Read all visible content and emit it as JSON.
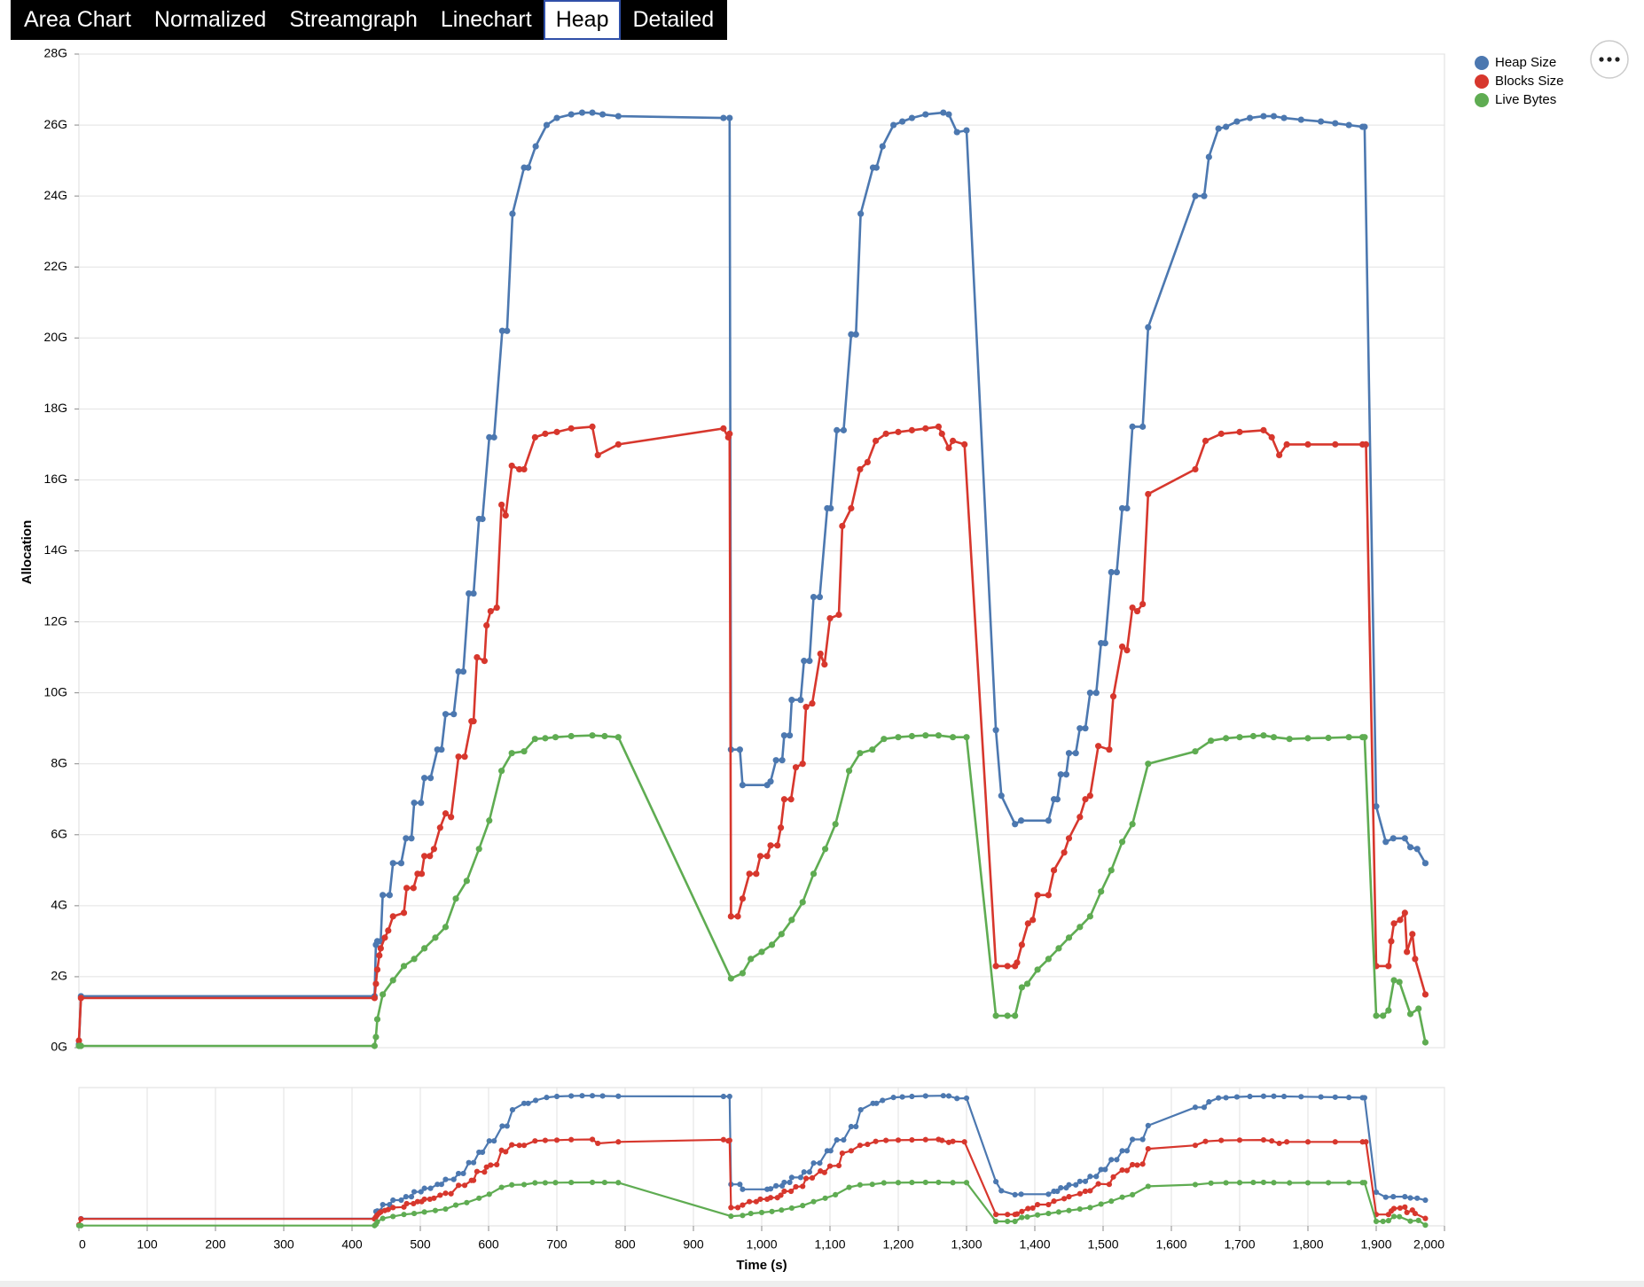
{
  "tabs": [
    "Area Chart",
    "Normalized",
    "Streamgraph",
    "Linechart",
    "Heap",
    "Detailed"
  ],
  "selected_tab": 4,
  "chart_data": {
    "type": "line",
    "x_label": "Time (s)",
    "y_label": "Allocation",
    "xlim": [
      0,
      2000
    ],
    "ylim": [
      0,
      28
    ],
    "yticks": [
      {
        "value": 0,
        "label": "0G"
      },
      {
        "value": 2,
        "label": "2G"
      },
      {
        "value": 4,
        "label": "4G"
      },
      {
        "value": 6,
        "label": "6G"
      },
      {
        "value": 8,
        "label": "8G"
      },
      {
        "value": 10,
        "label": "10G"
      },
      {
        "value": 12,
        "label": "12G"
      },
      {
        "value": 14,
        "label": "14G"
      },
      {
        "value": 16,
        "label": "16G"
      },
      {
        "value": 18,
        "label": "18G"
      },
      {
        "value": 20,
        "label": "20G"
      },
      {
        "value": 22,
        "label": "22G"
      },
      {
        "value": 24,
        "label": "24G"
      },
      {
        "value": 26,
        "label": "26G"
      },
      {
        "value": 28,
        "label": "28G"
      }
    ],
    "xticks": [
      0,
      100,
      200,
      300,
      400,
      500,
      600,
      700,
      800,
      900,
      {
        "value": 1000,
        "label": "1,000"
      },
      {
        "value": 1100,
        "label": "1,100"
      },
      {
        "value": 1200,
        "label": "1,200"
      },
      {
        "value": 1300,
        "label": "1,300"
      },
      {
        "value": 1400,
        "label": "1,400"
      },
      {
        "value": 1500,
        "label": "1,500"
      },
      {
        "value": 1600,
        "label": "1,600"
      },
      {
        "value": 1700,
        "label": "1,700"
      },
      {
        "value": 1800,
        "label": "1,800"
      },
      {
        "value": 1900,
        "label": "1,900"
      },
      {
        "value": 2000,
        "label": "2,000"
      }
    ],
    "grid": "y",
    "overview": true,
    "legend": "top-right",
    "series": [
      {
        "name": "Heap Size",
        "color": "#4c78b0",
        "x": [
          0,
          3,
          433,
          435,
          437,
          442,
          445,
          455,
          460,
          472,
          479,
          487,
          491,
          501,
          506,
          515,
          525,
          531,
          537,
          549,
          556,
          563,
          571,
          578,
          586,
          591,
          601,
          608,
          620,
          627,
          635,
          652,
          658,
          669,
          685,
          700,
          721,
          737,
          752,
          767,
          790,
          944,
          953,
          955,
          968,
          972,
          1008,
          1013,
          1021,
          1030,
          1033,
          1041,
          1044,
          1057,
          1062,
          1070,
          1076,
          1085,
          1096,
          1101,
          1110,
          1120,
          1131,
          1138,
          1145,
          1163,
          1168,
          1177,
          1193,
          1206,
          1220,
          1240,
          1266,
          1274,
          1286,
          1300,
          1343,
          1351,
          1371,
          1380,
          1420,
          1428,
          1433,
          1438,
          1446,
          1450,
          1460,
          1466,
          1474,
          1481,
          1490,
          1497,
          1503,
          1512,
          1520,
          1528,
          1535,
          1543,
          1558,
          1566,
          1635,
          1648,
          1655,
          1669,
          1680,
          1696,
          1715,
          1735,
          1750,
          1765,
          1790,
          1819,
          1840,
          1860,
          1880,
          1883,
          1900,
          1914,
          1925,
          1942,
          1950,
          1960,
          1972
        ],
        "values": [
          0.1,
          1.45,
          1.45,
          2.9,
          3.0,
          3.0,
          4.3,
          4.3,
          5.2,
          5.2,
          5.9,
          5.9,
          6.9,
          6.9,
          7.6,
          7.6,
          8.4,
          8.4,
          9.4,
          9.4,
          10.6,
          10.6,
          12.8,
          12.8,
          14.9,
          14.9,
          17.2,
          17.2,
          20.2,
          20.2,
          23.5,
          24.8,
          24.8,
          25.4,
          26.0,
          26.2,
          26.3,
          26.35,
          26.35,
          26.3,
          26.25,
          26.2,
          26.2,
          8.4,
          8.4,
          7.4,
          7.4,
          7.5,
          8.1,
          8.1,
          8.8,
          8.8,
          9.8,
          9.8,
          10.9,
          10.9,
          12.7,
          12.7,
          15.2,
          15.2,
          17.4,
          17.4,
          20.1,
          20.1,
          23.5,
          24.8,
          24.8,
          25.4,
          26.0,
          26.1,
          26.2,
          26.3,
          26.35,
          26.3,
          25.8,
          25.85,
          8.95,
          7.1,
          6.3,
          6.4,
          6.4,
          7.0,
          7.0,
          7.7,
          7.7,
          8.3,
          8.3,
          9.0,
          9.0,
          10.0,
          10.0,
          11.4,
          11.4,
          13.4,
          13.4,
          15.2,
          15.2,
          17.5,
          17.5,
          20.3,
          24.0,
          24.0,
          25.1,
          25.9,
          25.95,
          26.1,
          26.2,
          26.25,
          26.25,
          26.2,
          26.15,
          26.1,
          26.05,
          26.0,
          25.95,
          25.95,
          6.8,
          5.8,
          5.9,
          5.9,
          5.65,
          5.6,
          5.2
        ]
      },
      {
        "name": "Blocks Size",
        "color": "#d7372d",
        "x": [
          0,
          3,
          433,
          435,
          437,
          440,
          442,
          448,
          453,
          460,
          476,
          480,
          490,
          496,
          502,
          506,
          514,
          520,
          529,
          537,
          545,
          556,
          565,
          575,
          578,
          583,
          594,
          597,
          603,
          612,
          619,
          625,
          634,
          645,
          652,
          668,
          683,
          700,
          721,
          752,
          760,
          790,
          944,
          951,
          953,
          955,
          965,
          972,
          982,
          992,
          998,
          1008,
          1013,
          1023,
          1028,
          1033,
          1043,
          1050,
          1060,
          1065,
          1074,
          1086,
          1092,
          1100,
          1113,
          1118,
          1131,
          1144,
          1155,
          1167,
          1182,
          1200,
          1220,
          1240,
          1259,
          1264,
          1274,
          1280,
          1297,
          1343,
          1360,
          1371,
          1374,
          1381,
          1390,
          1397,
          1404,
          1420,
          1428,
          1443,
          1450,
          1466,
          1474,
          1481,
          1493,
          1509,
          1515,
          1528,
          1535,
          1543,
          1550,
          1558,
          1566,
          1635,
          1650,
          1673,
          1700,
          1735,
          1747,
          1758,
          1769,
          1800,
          1840,
          1880,
          1885,
          1900,
          1918,
          1922,
          1926,
          1935,
          1942,
          1945,
          1953,
          1957,
          1972
        ],
        "values": [
          0.2,
          1.4,
          1.4,
          1.8,
          2.2,
          2.6,
          2.8,
          3.1,
          3.3,
          3.7,
          3.8,
          4.5,
          4.5,
          4.9,
          4.9,
          5.4,
          5.4,
          5.6,
          6.2,
          6.6,
          6.5,
          8.2,
          8.2,
          9.2,
          9.2,
          11.0,
          10.9,
          11.9,
          12.3,
          12.4,
          15.3,
          15.0,
          16.4,
          16.3,
          16.3,
          17.2,
          17.3,
          17.35,
          17.45,
          17.5,
          16.7,
          17.0,
          17.45,
          17.2,
          17.3,
          3.7,
          3.7,
          4.2,
          4.9,
          4.9,
          5.4,
          5.4,
          5.7,
          5.7,
          6.2,
          7.0,
          7.0,
          7.9,
          8.0,
          9.6,
          9.7,
          11.1,
          10.8,
          12.1,
          12.2,
          14.7,
          15.2,
          16.3,
          16.5,
          17.1,
          17.3,
          17.35,
          17.4,
          17.45,
          17.5,
          17.3,
          16.9,
          17.1,
          17.0,
          2.3,
          2.3,
          2.3,
          2.4,
          2.9,
          3.5,
          3.6,
          4.3,
          4.3,
          5.0,
          5.5,
          5.9,
          6.5,
          7.0,
          7.1,
          8.5,
          8.4,
          9.9,
          11.3,
          11.2,
          12.4,
          12.3,
          12.5,
          15.6,
          16.3,
          17.1,
          17.3,
          17.35,
          17.4,
          17.2,
          16.7,
          17.0,
          17.0,
          17.0,
          17.0,
          17.0,
          2.3,
          2.3,
          3.0,
          3.5,
          3.6,
          3.8,
          2.7,
          3.2,
          2.5,
          1.5
        ]
      },
      {
        "name": "Live Bytes",
        "color": "#5fac52",
        "x": [
          0,
          3,
          433,
          435,
          437,
          445,
          460,
          476,
          491,
          506,
          522,
          537,
          552,
          568,
          586,
          601,
          619,
          634,
          652,
          668,
          683,
          698,
          721,
          752,
          770,
          790,
          955,
          972,
          984,
          1000,
          1015,
          1029,
          1044,
          1060,
          1076,
          1093,
          1108,
          1128,
          1144,
          1162,
          1179,
          1200,
          1220,
          1240,
          1259,
          1280,
          1300,
          1343,
          1360,
          1371,
          1381,
          1389,
          1404,
          1420,
          1435,
          1450,
          1466,
          1481,
          1497,
          1512,
          1528,
          1543,
          1566,
          1635,
          1658,
          1680,
          1700,
          1720,
          1735,
          1750,
          1773,
          1800,
          1830,
          1860,
          1880,
          1883,
          1900,
          1910,
          1918,
          1926,
          1934,
          1950,
          1962,
          1972
        ],
        "values": [
          0.05,
          0.05,
          0.05,
          0.3,
          0.8,
          1.5,
          1.9,
          2.3,
          2.5,
          2.8,
          3.1,
          3.4,
          4.2,
          4.7,
          5.6,
          6.4,
          7.8,
          8.3,
          8.35,
          8.7,
          8.72,
          8.75,
          8.78,
          8.8,
          8.78,
          8.75,
          1.95,
          2.1,
          2.5,
          2.7,
          2.9,
          3.2,
          3.6,
          4.1,
          4.9,
          5.6,
          6.3,
          7.8,
          8.3,
          8.4,
          8.7,
          8.75,
          8.78,
          8.8,
          8.8,
          8.75,
          8.75,
          0.9,
          0.9,
          0.9,
          1.7,
          1.8,
          2.2,
          2.5,
          2.8,
          3.1,
          3.4,
          3.7,
          4.4,
          5.0,
          5.8,
          6.3,
          8.0,
          8.35,
          8.65,
          8.72,
          8.75,
          8.78,
          8.8,
          8.75,
          8.7,
          8.72,
          8.73,
          8.75,
          8.75,
          8.75,
          0.9,
          0.9,
          1.05,
          1.9,
          1.85,
          0.95,
          1.1,
          0.15
        ]
      }
    ]
  }
}
